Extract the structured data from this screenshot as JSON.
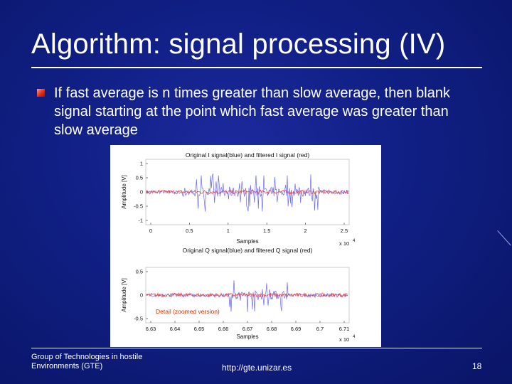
{
  "slide": {
    "title": "Algorithm: signal processing (IV)",
    "bullet": "If fast average is n times greater than slow average, then blank signal starting at the point which fast average was greater than slow average",
    "footer_left": "Group of Technologies in hostile Environments (GTE)",
    "footer_center": "http://gte.unizar.es",
    "page_number": "18"
  },
  "colors": {
    "background": "#101f84",
    "raw_signal": "#5a5ae6",
    "filtered_signal": "#e04040",
    "detail_label": "#cc3300"
  },
  "figure": {
    "top_plot": {
      "title": "Original I signal(blue) and filtered I signal (red)",
      "xlabel": "Samples",
      "ylabel": "Amplitude [V]",
      "x_exponent": "x 10",
      "x_exponent_power": "4",
      "x_ticks": [
        "0",
        "0.5",
        "1",
        "1.5",
        "2",
        "2.5"
      ],
      "y_ticks": [
        "1",
        "0.5",
        "0",
        "-0.5",
        "-1"
      ]
    },
    "bottom_plot": {
      "title": "Original Q signal(blue) and filtered Q signal (red)",
      "xlabel": "Samples",
      "ylabel": "Amplitude [V]",
      "x_exponent": "x 10",
      "x_exponent_power": "4",
      "x_ticks": [
        "6.63",
        "6.64",
        "6.65",
        "6.66",
        "6.67",
        "6.68",
        "6.69",
        "6.7",
        "6.71"
      ],
      "y_ticks": [
        "0.5",
        "0",
        "-0.5"
      ],
      "annotation": "Detail (zoomed version)"
    }
  },
  "chart_data": [
    {
      "type": "line",
      "title": "Original I signal(blue) and filtered I signal (red)",
      "xlabel": "Samples",
      "ylabel": "Amplitude [V]",
      "xlim": [
        0,
        25000
      ],
      "ylim": [
        -1,
        1
      ],
      "grid": false,
      "series": [
        {
          "name": "Original I signal",
          "color": "#5a5ae6",
          "segments": [
            {
              "x_start": 0,
              "x_end": 4500,
              "amplitude": 0.05
            },
            {
              "x_start": 4500,
              "x_end": 21500,
              "amplitude": 0.6
            },
            {
              "x_start": 21500,
              "x_end": 25000,
              "amplitude": 0.07
            }
          ]
        },
        {
          "name": "Filtered I signal",
          "color": "#e04040",
          "segments": [
            {
              "x_start": 0,
              "x_end": 25000,
              "amplitude": 0.06
            }
          ]
        }
      ]
    },
    {
      "type": "line",
      "title": "Original Q signal(blue) and filtered Q signal (red)",
      "xlabel": "Samples",
      "ylabel": "Amplitude [V]",
      "xlim": [
        66300,
        67150
      ],
      "ylim": [
        -0.7,
        0.7
      ],
      "grid": false,
      "series": [
        {
          "name": "Original Q signal",
          "color": "#5a5ae6",
          "segments": [
            {
              "x_start": 66300,
              "x_end": 66650,
              "amplitude": 0.04
            },
            {
              "x_start": 66650,
              "x_end": 66900,
              "amplitude": 0.45
            },
            {
              "x_start": 66900,
              "x_end": 67150,
              "amplitude": 0.04
            }
          ]
        },
        {
          "name": "Filtered Q signal",
          "color": "#e04040",
          "segments": [
            {
              "x_start": 66300,
              "x_end": 67150,
              "amplitude": 0.05
            }
          ]
        }
      ]
    }
  ]
}
